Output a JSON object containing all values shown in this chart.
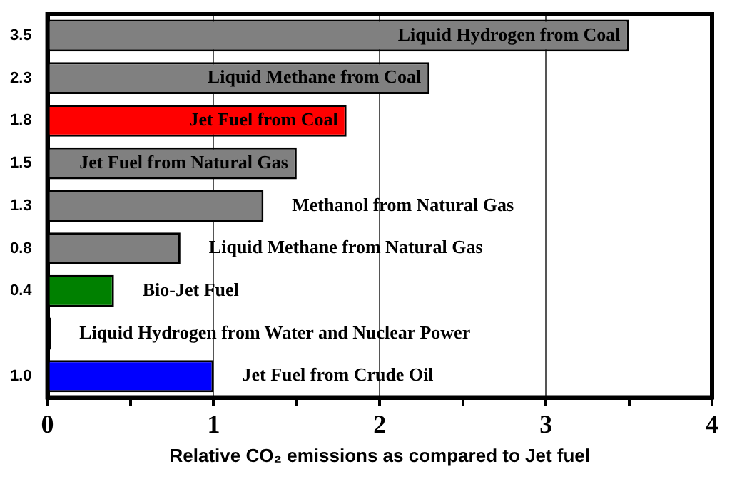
{
  "chart_data": {
    "type": "bar",
    "orientation": "horizontal",
    "xlabel": "Relative CO₂ emissions as compared to Jet fuel",
    "categories": [
      "Liquid Hydrogen from Coal",
      "Liquid Methane from Coal",
      "Jet Fuel from Coal",
      "Jet Fuel from Natural Gas",
      "Methanol from Natural Gas",
      "Liquid Methane from Natural Gas",
      "Bio-Jet Fuel",
      "Liquid Hydrogen from Water and Nuclear Power",
      "Jet Fuel from Crude Oil"
    ],
    "values": [
      3.5,
      2.3,
      1.8,
      1.5,
      1.3,
      0.8,
      0.4,
      0.02,
      1.0
    ],
    "value_labels": [
      "3.5",
      "2.3",
      "1.8",
      "1.5",
      "1.3",
      "0.8",
      "0.4",
      null,
      "1.0"
    ],
    "colors": [
      "#808080",
      "#808080",
      "#ff0000",
      "#808080",
      "#808080",
      "#808080",
      "#008000",
      "#000000",
      "#0000ff"
    ],
    "xlim": [
      0,
      4
    ],
    "xticks": [
      0,
      {
        "value": 0.5,
        "label": null
      },
      1,
      {
        "value": 1.5,
        "label": null
      },
      2,
      {
        "value": 2.5,
        "label": null
      },
      3,
      {
        "value": 3.5,
        "label": null
      },
      4
    ],
    "grid": "x"
  }
}
